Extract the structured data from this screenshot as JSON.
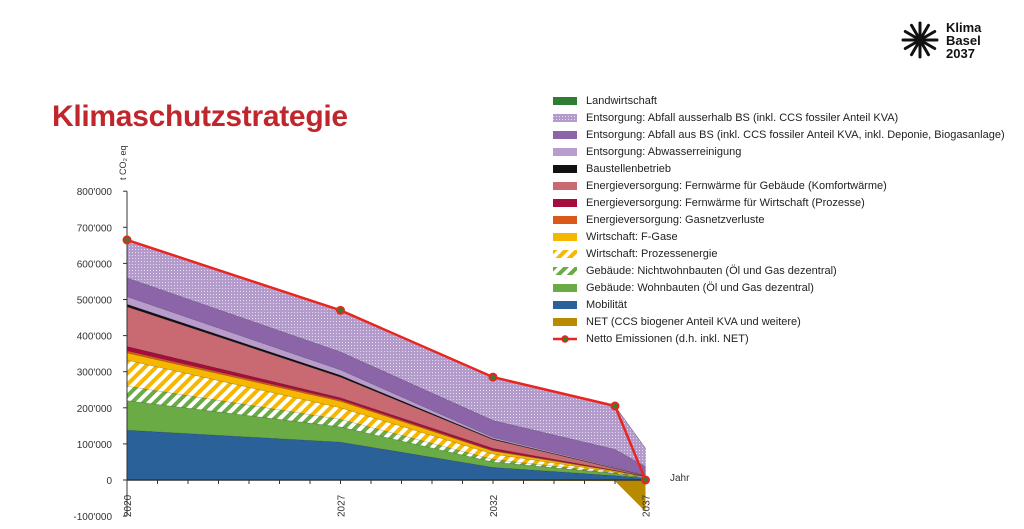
{
  "title": "Klimaschutzstrategie",
  "logo": {
    "lines": [
      "Klima",
      "Basel",
      "2037"
    ],
    "icon": "sunburst-icon"
  },
  "chart_data": {
    "type": "area",
    "stacked": true,
    "ylabel": "t CO₂ eq",
    "xlabel": "Jahr",
    "x": [
      2020,
      2027,
      2032,
      2036,
      2037
    ],
    "xticklabels": [
      "2020",
      "2027",
      "2032",
      "2037"
    ],
    "xlim": [
      2020,
      2037
    ],
    "ylim": [
      -100000,
      800000
    ],
    "yticks": [
      {
        "v": 800000,
        "label": "800'000"
      },
      {
        "v": 700000,
        "label": "700'000"
      },
      {
        "v": 600000,
        "label": "600'000"
      },
      {
        "v": 500000,
        "label": "500'000"
      },
      {
        "v": 400000,
        "label": "400'000"
      },
      {
        "v": 300000,
        "label": "300'000"
      },
      {
        "v": 200000,
        "label": "200'000"
      },
      {
        "v": 100000,
        "label": "100'000"
      },
      {
        "v": 0,
        "label": "0"
      },
      {
        "v": -100000,
        "label": "-100'000"
      }
    ],
    "grid": false,
    "legend_position": "top-right",
    "series": [
      {
        "name": "Mobilität",
        "color": "#2a6199",
        "pattern": "solid",
        "values": [
          138000,
          105000,
          35000,
          12000,
          5000
        ]
      },
      {
        "name": "Gebäude: Wohnbauten (Öl und Gas dezentral)",
        "color": "#6aab45",
        "pattern": "solid",
        "values": [
          82000,
          42000,
          15000,
          6000,
          1000
        ]
      },
      {
        "name": "Gebäude: Nichtwohnbauten (Öl und Gas dezentral)",
        "color": "#6aab45",
        "pattern": "hatch",
        "values": [
          40000,
          21000,
          7000,
          2000,
          1000
        ]
      },
      {
        "name": "Wirtschaft: Prozessenergie",
        "color": "#f6b700",
        "pattern": "hatch",
        "values": [
          72000,
          32000,
          15000,
          2000,
          1000
        ]
      },
      {
        "name": "Wirtschaft: F-Gase",
        "color": "#f6b700",
        "pattern": "solid",
        "values": [
          20000,
          18000,
          8000,
          3000,
          1000
        ]
      },
      {
        "name": "Energieversorgung: Gasnetzverluste",
        "color": "#d9581a",
        "pattern": "solid",
        "values": [
          6000,
          4000,
          2000,
          1000,
          500
        ]
      },
      {
        "name": "Energieversorgung: Fernwärme für Wirtschaft (Prozesse)",
        "color": "#a50d3c",
        "pattern": "solid",
        "values": [
          12000,
          6000,
          6000,
          1000,
          500
        ]
      },
      {
        "name": "Energieversorgung: Fernwärme für Gebäude (Komfortwärme)",
        "color": "#c96a72",
        "pattern": "solid",
        "values": [
          110000,
          57000,
          24000,
          5000,
          1000
        ]
      },
      {
        "name": "Baustellenbetrieb",
        "color": "#111111",
        "pattern": "solid",
        "values": [
          7000,
          5000,
          2000,
          1000,
          500
        ]
      },
      {
        "name": "Entsorgung: Abwasserreinigung",
        "color": "#b89ccb",
        "pattern": "solid",
        "values": [
          21000,
          15000,
          4000,
          2000,
          1000
        ]
      },
      {
        "name": "Entsorgung: Abfall aus BS (inkl. CCS fossiler Anteil KVA, inkl. Deponie, Biogasanlage)",
        "color": "#8c65a8",
        "pattern": "solid",
        "values": [
          52000,
          50000,
          47000,
          50000,
          25000
        ]
      },
      {
        "name": "Entsorgung: Abfall ausserhalb BS (inkl. CCS fossiler Anteil KVA)",
        "color": "#b39ccc",
        "pattern": "dots",
        "values": [
          105000,
          115000,
          120000,
          120000,
          50000
        ]
      },
      {
        "name": "Landwirtschaft",
        "color": "#2f7d32",
        "pattern": "solid",
        "values": [
          0,
          0,
          0,
          0,
          0
        ]
      }
    ],
    "negative_series": {
      "name": "NET (CCS biogener Anteil KVA und weitere)",
      "color": "#b88a00",
      "values": [
        0,
        0,
        -2000,
        -3000,
        -87500
      ]
    },
    "line": {
      "name": "Netto Emissionen (d.h. inkl. NET)",
      "color": "#e8261f",
      "marker_color": "#3a7d2a",
      "values": [
        665000,
        470000,
        285000,
        205000,
        0
      ]
    },
    "legend_order": [
      "Landwirtschaft",
      "Entsorgung: Abfall ausserhalb BS (inkl. CCS fossiler Anteil KVA)",
      "Entsorgung: Abfall aus BS (inkl. CCS fossiler Anteil KVA, inkl. Deponie, Biogasanlage)",
      "Entsorgung: Abwasserreinigung",
      "Baustellenbetrieb",
      "Energieversorgung: Fernwärme für Gebäude (Komfortwärme)",
      "Energieversorgung: Fernwärme für Wirtschaft (Prozesse)",
      "Energieversorgung: Gasnetzverluste",
      "Wirtschaft: F-Gase",
      "Wirtschaft: Prozessenergie",
      "Gebäude: Nichtwohnbauten (Öl und Gas dezentral)",
      "Gebäude: Wohnbauten (Öl und Gas dezentral)",
      "Mobilität",
      "NET (CCS biogener Anteil KVA und weitere)",
      "Netto Emissionen (d.h. inkl. NET)"
    ]
  }
}
